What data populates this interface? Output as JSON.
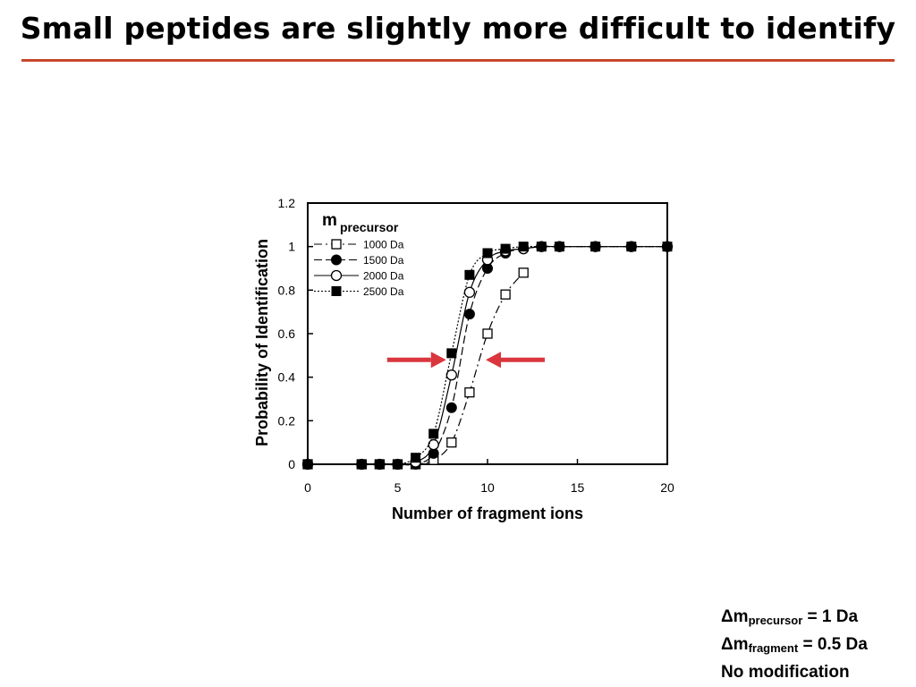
{
  "slide": {
    "title": "Small peptides are slightly more difficult to identify",
    "rule_color": "#c8462a"
  },
  "chart_data": {
    "type": "line",
    "xlabel": "Number of fragment ions",
    "ylabel": "Probability of Identification",
    "xlim": [
      0,
      20
    ],
    "ylim": [
      0,
      1.2
    ],
    "x_ticks": [
      "0",
      "5",
      "10",
      "15",
      "20"
    ],
    "y_ticks": [
      "0",
      "0.2",
      "0.4",
      "0.6",
      "0.8",
      "1",
      "1.2"
    ],
    "grid": false,
    "legend_title_main": "m",
    "legend_title_sub": "precursor",
    "legend_position": "top-left",
    "series": [
      {
        "name": "1000 Da",
        "marker": "open-square",
        "dash": "dash-dot",
        "x": [
          0,
          3,
          4,
          5,
          6,
          7,
          8,
          9,
          10,
          11,
          12
        ],
        "y": [
          0,
          0,
          0,
          0,
          0,
          0.02,
          0.1,
          0.33,
          0.6,
          0.78,
          0.88
        ]
      },
      {
        "name": "1500 Da",
        "marker": "filled-circle",
        "dash": "long-dash",
        "x": [
          0,
          3,
          4,
          5,
          6,
          7,
          8,
          9,
          10,
          11,
          12,
          13,
          14,
          16,
          18,
          20
        ],
        "y": [
          0,
          0,
          0,
          0,
          0,
          0.05,
          0.26,
          0.69,
          0.9,
          0.97,
          0.99,
          1.0,
          1.0,
          1.0,
          1.0,
          1.0
        ]
      },
      {
        "name": "2000 Da",
        "marker": "open-circle",
        "dash": "solid",
        "x": [
          0,
          3,
          4,
          5,
          6,
          7,
          8,
          9,
          10,
          11,
          12,
          13,
          14,
          16,
          18,
          20
        ],
        "y": [
          0,
          0,
          0,
          0,
          0.01,
          0.09,
          0.41,
          0.79,
          0.94,
          0.98,
          0.99,
          1.0,
          1.0,
          1.0,
          1.0,
          1.0
        ]
      },
      {
        "name": "2500 Da",
        "marker": "filled-square",
        "dash": "dotted",
        "x": [
          0,
          3,
          4,
          5,
          6,
          7,
          8,
          9,
          10,
          11,
          12,
          13,
          14,
          16,
          18,
          20
        ],
        "y": [
          0,
          0,
          0,
          0,
          0.03,
          0.14,
          0.51,
          0.87,
          0.97,
          0.99,
          1.0,
          1.0,
          1.0,
          1.0,
          1.0,
          1.0
        ]
      }
    ],
    "annotations": [
      {
        "type": "arrow",
        "direction": "right",
        "x_tip": 7.7,
        "y": 0.48,
        "color": "#d9363e"
      },
      {
        "type": "arrow",
        "direction": "left",
        "x_tip": 9.9,
        "y": 0.48,
        "color": "#d9363e"
      }
    ]
  },
  "notes": {
    "line1_prefix": "Δm",
    "line1_sub": "precursor",
    "line1_suffix": " = 1 Da",
    "line2_prefix": "Δm",
    "line2_sub": "fragment",
    "line2_suffix": " = 0.5 Da",
    "line3": "No modification"
  }
}
